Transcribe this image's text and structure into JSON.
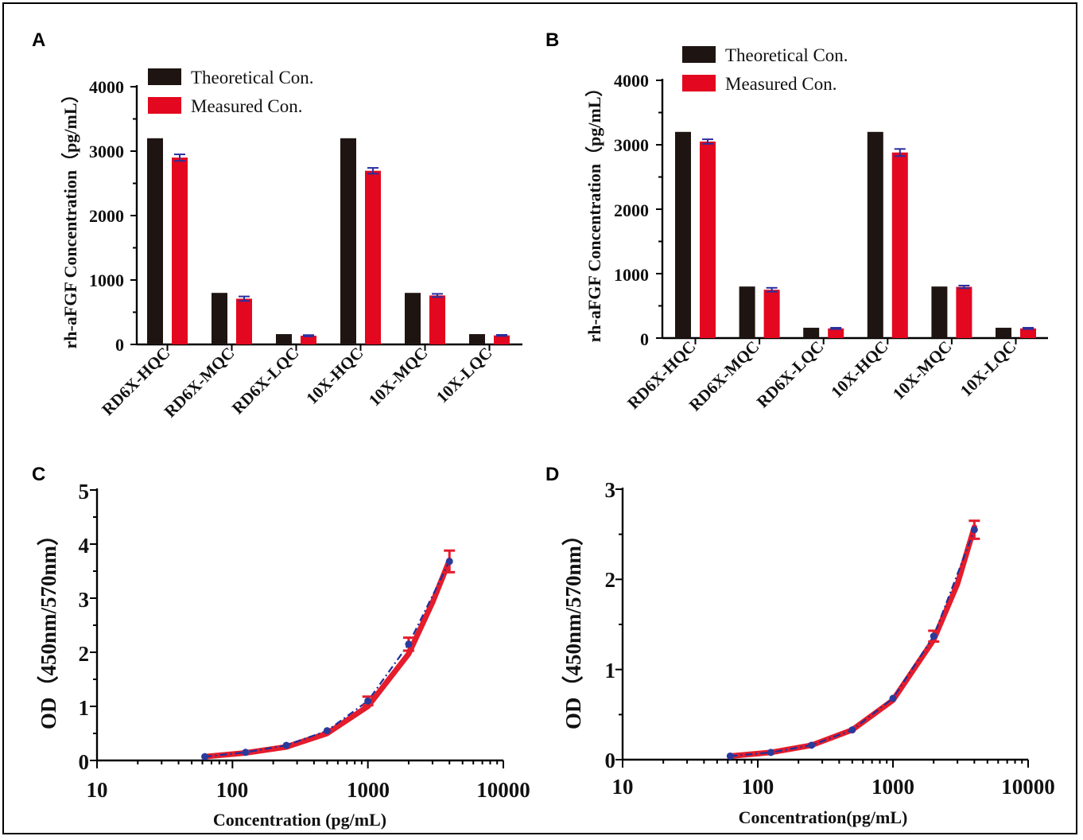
{
  "colors": {
    "theoretical": "#1e1512",
    "measured": "#e3071f",
    "error_bar": "#2b2f9e",
    "fit_curve": "#e41c2c",
    "data_line": "#1f2f9a",
    "point": "#2a3a9c"
  },
  "chart_data": [
    {
      "panel": "A",
      "type": "bar",
      "title": "",
      "xlabel": "",
      "ylabel": "rh-aFGF Concentration（pg/mL）",
      "ylim": [
        0,
        4000
      ],
      "yticks": [
        "0",
        "1000",
        "2000",
        "3000",
        "4000"
      ],
      "categories": [
        "RD6X-HQC",
        "RD6X-MQC",
        "RD6X-LQC",
        "10X-HQC",
        "10X-MQC",
        "10X-LQC"
      ],
      "series": [
        {
          "name": "Theoretical Con.",
          "values": [
            3200,
            800,
            160,
            3200,
            800,
            160
          ]
        },
        {
          "name": "Measured Con.",
          "values": [
            2900,
            710,
            135,
            2695,
            760,
            140
          ],
          "errors": [
            50,
            35,
            10,
            45,
            25,
            8
          ]
        }
      ],
      "legend": "top-left"
    },
    {
      "panel": "B",
      "type": "bar",
      "title": "",
      "xlabel": "",
      "ylabel": "rh-aFGF Concentration（pg/mL）",
      "ylim": [
        0,
        4000
      ],
      "yticks": [
        "0",
        "1000",
        "2000",
        "3000",
        "4000"
      ],
      "categories": [
        "RD6X-HQC",
        "RD6X-MQC",
        "RD6X-LQC",
        "10X-HQC",
        "10X-MQC",
        "10X-LQC"
      ],
      "series": [
        {
          "name": "Theoretical Con.",
          "values": [
            3200,
            800,
            160,
            3200,
            800,
            160
          ]
        },
        {
          "name": "Measured Con.",
          "values": [
            3050,
            750,
            150,
            2880,
            795,
            150
          ],
          "errors": [
            35,
            30,
            10,
            55,
            20,
            10
          ]
        }
      ],
      "legend": "top-left"
    },
    {
      "panel": "C",
      "type": "line",
      "title": "",
      "xlabel": "Concentration (pg/mL)",
      "ylabel": "OD（450nm/570nm）",
      "xscale": "log",
      "xlim": [
        10,
        10000
      ],
      "ylim": [
        0,
        5
      ],
      "xticks": [
        "10",
        "100",
        "1000",
        "10000"
      ],
      "yticks": [
        "0",
        "1",
        "2",
        "3",
        "4",
        "5"
      ],
      "x": [
        62.5,
        125,
        250,
        500,
        1000,
        2000,
        4000
      ],
      "y": [
        0.07,
        0.15,
        0.28,
        0.55,
        1.1,
        2.15,
        3.68
      ],
      "fit": {
        "x": [
          62.5,
          125,
          250,
          500,
          1000,
          2000,
          3000,
          4000
        ],
        "y": [
          0.07,
          0.14,
          0.25,
          0.5,
          1.0,
          1.97,
          2.92,
          3.7
        ]
      },
      "error_bars": [
        {
          "x": 1000,
          "value": 1.1,
          "error": 0.08
        },
        {
          "x": 2000,
          "value": 2.15,
          "error": 0.12
        },
        {
          "x": 4000,
          "value": 3.68,
          "error": 0.2
        }
      ]
    },
    {
      "panel": "D",
      "type": "line",
      "title": "",
      "xlabel": "Concentration(pg/mL)",
      "ylabel": "OD（450nm/570nm）",
      "xscale": "log",
      "xlim": [
        10,
        10000
      ],
      "ylim": [
        0,
        3
      ],
      "xticks": [
        "10",
        "100",
        "1000",
        "10000"
      ],
      "yticks": [
        "0",
        "1",
        "2",
        "3"
      ],
      "x": [
        62.5,
        125,
        250,
        500,
        1000,
        2000,
        4000
      ],
      "y": [
        0.04,
        0.08,
        0.16,
        0.33,
        0.68,
        1.37,
        2.55
      ],
      "fit": {
        "x": [
          62.5,
          125,
          250,
          500,
          1000,
          2000,
          3000,
          4000
        ],
        "y": [
          0.04,
          0.08,
          0.16,
          0.33,
          0.66,
          1.33,
          1.95,
          2.58
        ]
      },
      "error_bars": [
        {
          "x": 2000,
          "value": 1.37,
          "error": 0.06
        },
        {
          "x": 4000,
          "value": 2.55,
          "error": 0.1
        }
      ]
    }
  ]
}
